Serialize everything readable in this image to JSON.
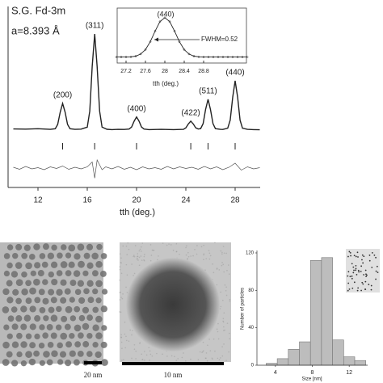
{
  "chart_data": [
    {
      "type": "line",
      "annotations": [
        "S.G. Fd-3m",
        "a=8.393 Å"
      ],
      "x_label": "tth (deg.)",
      "color": "#222222",
      "x": [
        10.0,
        11.0,
        12.0,
        13.0,
        13.4,
        13.6,
        13.8,
        14.0,
        14.2,
        14.4,
        14.6,
        15.0,
        15.5,
        16.0,
        16.2,
        16.4,
        16.6,
        16.8,
        17.0,
        17.2,
        17.6,
        18.0,
        18.5,
        19.0,
        19.4,
        19.6,
        19.8,
        20.0,
        20.2,
        20.4,
        20.6,
        21.0,
        22.0,
        23.0,
        23.8,
        24.0,
        24.2,
        24.4,
        24.6,
        24.8,
        25.0,
        25.2,
        25.4,
        25.6,
        25.8,
        26.0,
        26.2,
        26.4,
        26.8,
        27.0,
        27.4,
        27.6,
        27.8,
        28.0,
        28.2,
        28.4,
        28.6,
        29.0,
        29.5,
        30.0
      ],
      "values": [
        440,
        435,
        445,
        430,
        445,
        550,
        846,
        1060,
        846,
        550,
        445,
        430,
        435,
        486,
        871,
        1961,
        2750,
        1961,
        871,
        486,
        432,
        425,
        430,
        428,
        437,
        487,
        628,
        730,
        628,
        487,
        437,
        425,
        430,
        425,
        430,
        468,
        562,
        630,
        562,
        468,
        440,
        448,
        569,
        912,
        1160,
        912,
        569,
        448,
        430,
        428,
        458,
        654,
        1209,
        1610,
        1209,
        654,
        458,
        430,
        425,
        420
      ],
      "xlim": [
        9.6,
        30
      ],
      "ylim": [
        -60,
        3280
      ],
      "xticks": [
        12,
        16,
        20,
        24,
        28
      ],
      "reflections": {
        "x": [
          14.0,
          16.6,
          20.0,
          24.4,
          25.8,
          28.0
        ],
        "labels": [
          "(200)",
          "(311)",
          "(400)",
          "(422)",
          "(511)",
          "(440)"
        ]
      },
      "residual": {
        "x": [
          10,
          10.5,
          11,
          11.5,
          12,
          12.5,
          13,
          13.5,
          14,
          14.5,
          15,
          15.5,
          16,
          16.4,
          16.6,
          16.8,
          17.2,
          17.5,
          18,
          18.5,
          19,
          19.5,
          20,
          20.5,
          21,
          21.5,
          22,
          22.5,
          23,
          23.5,
          24,
          24.5,
          25,
          25.5,
          26,
          26.5,
          27,
          27.5,
          28,
          28.5,
          29,
          29.5,
          30
        ],
        "values": [
          20,
          -30,
          40,
          -20,
          10,
          -40,
          30,
          -10,
          50,
          -30,
          20,
          -20,
          30,
          150,
          -250,
          200,
          -40,
          30,
          -20,
          40,
          -30,
          20,
          -40,
          30,
          -20,
          10,
          -30,
          40,
          -20,
          30,
          -10,
          20,
          -30,
          40,
          -20,
          30,
          -40,
          20,
          120,
          -50,
          30,
          -20,
          10
        ],
        "ylim": [
          -400,
          400
        ]
      }
    },
    {
      "type": "line",
      "title": "(440)",
      "annotation": "FWHM=0.52",
      "x_label": "tth (deg.)",
      "color": "#222222",
      "x": [
        27.0,
        27.1,
        27.2,
        27.3,
        27.4,
        27.5,
        27.6,
        27.7,
        27.8,
        27.9,
        28.0,
        28.1,
        28.2,
        28.3,
        28.4,
        28.5,
        28.6,
        28.7,
        28.8,
        28.9,
        29.0,
        29.1,
        29.2,
        29.3,
        29.4,
        29.5,
        29.6,
        29.7
      ],
      "values": [
        430,
        430,
        430,
        437,
        458,
        520,
        654,
        890,
        1209,
        1492,
        1610,
        1492,
        1209,
        890,
        654,
        520,
        458,
        437,
        430,
        430,
        430,
        430,
        430,
        430,
        430,
        430,
        430,
        430
      ],
      "xlim": [
        27.0,
        29.7
      ],
      "ylim": [
        300,
        1800
      ],
      "xticks": [
        27.2,
        27.6,
        28,
        28.4,
        28.8
      ]
    },
    {
      "type": "histogram",
      "x_label": "Size [nm]",
      "y_label": "Number of particles",
      "color": "#bdbdbd",
      "bins": [
        3,
        4.2,
        5.4,
        6.6,
        7.8,
        9,
        10.2,
        11.4,
        12.6,
        13.8
      ],
      "values": [
        2,
        7,
        17,
        25,
        112,
        115,
        27,
        9,
        5
      ],
      "xlim": [
        2,
        14
      ],
      "ylim": [
        0,
        120
      ],
      "xticks": [
        4,
        8,
        12
      ],
      "yticks": [
        0,
        40,
        80,
        120
      ]
    }
  ],
  "images": [
    {
      "scale_bar": "20 nm"
    },
    {
      "scale_bar": "10 nm"
    }
  ]
}
